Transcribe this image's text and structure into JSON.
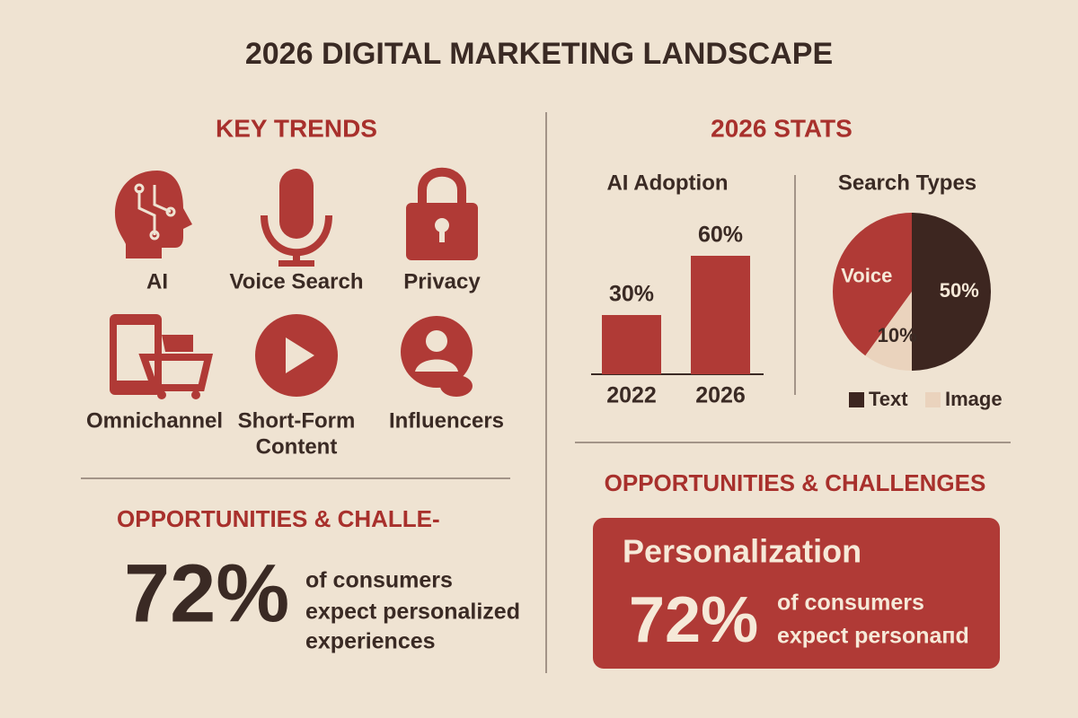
{
  "title": "2026 DIGITAL MARKETING LANDSCAPE",
  "key_trends": {
    "heading": "KEY TRENDS",
    "items": [
      {
        "label": "AI"
      },
      {
        "label": "Voice Search"
      },
      {
        "label": "Privacy"
      },
      {
        "label": "Omnichannel"
      },
      {
        "label": [
          "Short-Form",
          "Content"
        ]
      },
      {
        "label": "Influencers"
      }
    ]
  },
  "stats": {
    "heading": "2026 STATS"
  },
  "chart_data": [
    {
      "type": "bar",
      "title": "AI Adoption",
      "categories": [
        "2022",
        "2026"
      ],
      "values": [
        30,
        60
      ],
      "value_labels": [
        "30%",
        "60%"
      ],
      "color": "#b03a36"
    },
    {
      "type": "pie",
      "title": "Search Types",
      "categories": [
        "Voice",
        "Text",
        "Image"
      ],
      "values": [
        40,
        50,
        10
      ],
      "value_labels": [
        null,
        "50%",
        "10%"
      ],
      "colors": [
        "#b03a36",
        "#3d2620",
        "#ead3bd"
      ]
    }
  ],
  "left_opportunities": {
    "heading": "OPPORTUNITIES & CHALLE-",
    "stat": "72%",
    "text": [
      "of consumers",
      "expect personalized",
      "experiences"
    ]
  },
  "right_opportunities": {
    "heading": "OPPORTUNITIES & CHALLENGES",
    "card_title": "Personalization",
    "stat": "72%",
    "text": [
      "of consumers",
      "expect personaпd"
    ]
  }
}
